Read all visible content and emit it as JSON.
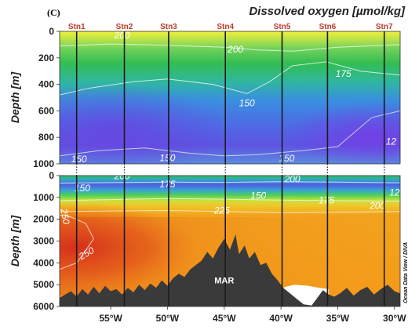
{
  "panel_label": "(C)",
  "title": "Dissolved oxygen [µmol/kg]",
  "credit": "Ocean Data View / DIVA",
  "colors": {
    "o2_low": "#6a2fd8",
    "o2_mid": "#3f7fe0",
    "o2_high": "#2ec24a",
    "o2_max": "#f6f54a",
    "o2_deep": "#f09418",
    "o2_deep_max": "#d8331c",
    "station": "#c0392b",
    "bathymetry": "#3a3a3a"
  },
  "chart_data": {
    "type": "heatmap",
    "variable": "Dissolved oxygen [µmol/kg]",
    "x_axis": {
      "ticks": [
        -55,
        -50,
        -45,
        -40,
        -35,
        -30
      ],
      "tick_labels": [
        "55°W",
        "50°W",
        "45°W",
        "40°W",
        "35°W",
        "30°W"
      ],
      "range": [
        -59.5,
        -29.5
      ]
    },
    "stations": [
      {
        "name": "Stn1",
        "lon": -58.0
      },
      {
        "name": "Stn2",
        "lon": -53.8
      },
      {
        "name": "Stn3",
        "lon": -49.9
      },
      {
        "name": "Stn4",
        "lon": -44.9
      },
      {
        "name": "Stn5",
        "lon": -39.9
      },
      {
        "name": "Stn6",
        "lon": -35.9
      },
      {
        "name": "Stn7",
        "lon": -30.9
      }
    ],
    "panels": [
      {
        "ylabel": "Depth [m]",
        "ylim": [
          0,
          1000
        ],
        "y_ticks": [
          0,
          200,
          400,
          600,
          800,
          1000
        ],
        "contour_labels": [
          {
            "text": "200",
            "lon": -54.0,
            "depth": 30
          },
          {
            "text": "200",
            "lon": -44.0,
            "depth": 135
          },
          {
            "text": "175",
            "lon": -34.5,
            "depth": 320
          },
          {
            "text": "150",
            "lon": -43.0,
            "depth": 540
          },
          {
            "text": "150",
            "lon": -57.8,
            "depth": 965
          },
          {
            "text": "150",
            "lon": -50.0,
            "depth": 955
          },
          {
            "text": "150",
            "lon": -39.5,
            "depth": 960
          },
          {
            "text": "12",
            "lon": -30.3,
            "depth": 830
          }
        ]
      },
      {
        "ylabel": "Depth [m]",
        "ylim": [
          0,
          6000
        ],
        "y_ticks": [
          0,
          1000,
          2000,
          3000,
          4000,
          5000,
          6000
        ],
        "contour_labels": [
          {
            "text": "200",
            "lon": -54.0,
            "depth": 20
          },
          {
            "text": "150",
            "lon": -57.5,
            "depth": 580
          },
          {
            "text": "175",
            "lon": -50.0,
            "depth": 400
          },
          {
            "text": "200",
            "lon": -39.0,
            "depth": 160
          },
          {
            "text": "150",
            "lon": -42.0,
            "depth": 910
          },
          {
            "text": "175",
            "lon": -36.0,
            "depth": 1130
          },
          {
            "text": "12",
            "lon": -30.0,
            "depth": 780
          },
          {
            "text": "200",
            "lon": -31.5,
            "depth": 1380
          },
          {
            "text": "250",
            "lon": -59.3,
            "depth": 1750
          },
          {
            "text": "225",
            "lon": -45.2,
            "depth": 1600
          },
          {
            "text": "250",
            "lon": -57.0,
            "depth": 3550
          }
        ],
        "annotation": {
          "text": "MAR",
          "lon": -45.0,
          "depth": 4800
        },
        "bathymetry": [
          [
            -59.5,
            5600
          ],
          [
            -59,
            5450
          ],
          [
            -58.5,
            5300
          ],
          [
            -58,
            5550
          ],
          [
            -57.5,
            5200
          ],
          [
            -57,
            5450
          ],
          [
            -56.5,
            5100
          ],
          [
            -56,
            5400
          ],
          [
            -55.5,
            5050
          ],
          [
            -55,
            5300
          ],
          [
            -54.5,
            5200
          ],
          [
            -54,
            5450
          ],
          [
            -53.5,
            5150
          ],
          [
            -53,
            5350
          ],
          [
            -52.5,
            5000
          ],
          [
            -52,
            5250
          ],
          [
            -51.5,
            4950
          ],
          [
            -51,
            5150
          ],
          [
            -50.5,
            4800
          ],
          [
            -50,
            5050
          ],
          [
            -49.5,
            4700
          ],
          [
            -49,
            4500
          ],
          [
            -48.5,
            4650
          ],
          [
            -48,
            4300
          ],
          [
            -47.5,
            4100
          ],
          [
            -47,
            3900
          ],
          [
            -46.5,
            3500
          ],
          [
            -46,
            3800
          ],
          [
            -45.5,
            3300
          ],
          [
            -45,
            2900
          ],
          [
            -44.5,
            3400
          ],
          [
            -44,
            2700
          ],
          [
            -43.7,
            3600
          ],
          [
            -43.2,
            3200
          ],
          [
            -42.8,
            3800
          ],
          [
            -42.3,
            3500
          ],
          [
            -41.8,
            4100
          ],
          [
            -41.3,
            4000
          ],
          [
            -40.8,
            4500
          ],
          [
            -40.3,
            4800
          ],
          [
            -39.8,
            5150
          ],
          [
            -39.2,
            5400
          ],
          [
            -38.5,
            5700
          ],
          [
            -38,
            5900
          ],
          [
            -37.3,
            5950
          ],
          [
            -36.8,
            5600
          ],
          [
            -36.3,
            5250
          ],
          [
            -35.8,
            5450
          ],
          [
            -35.3,
            5550
          ],
          [
            -34.8,
            5400
          ],
          [
            -34.2,
            5150
          ],
          [
            -33.6,
            5500
          ],
          [
            -33,
            5250
          ],
          [
            -32.4,
            5100
          ],
          [
            -31.8,
            5450
          ],
          [
            -31.2,
            5200
          ],
          [
            -30.6,
            5000
          ],
          [
            -30,
            5300
          ],
          [
            -29.5,
            5400
          ]
        ]
      }
    ]
  }
}
